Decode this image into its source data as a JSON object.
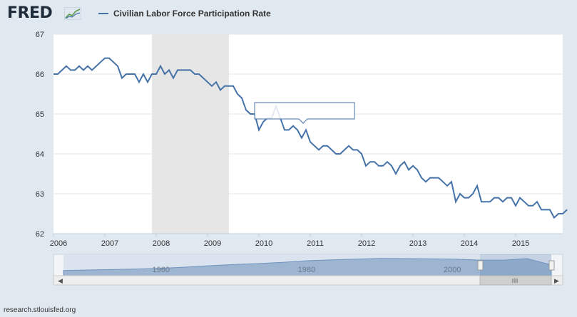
{
  "brand": {
    "logo_text": "FRED",
    "logo_icon": "chart-line-icon",
    "accent": "#4572a7"
  },
  "footer": {
    "source": "research.stlouisfed.org"
  },
  "chart_data": {
    "type": "line",
    "title": "",
    "xlabel": "",
    "ylabel": "",
    "ylim": [
      62,
      67
    ],
    "xlim": [
      "2006-01",
      "2015-12"
    ],
    "y_ticks": [
      62,
      63,
      64,
      65,
      66,
      67
    ],
    "x_ticks": [
      "2006",
      "2007",
      "2008",
      "2009",
      "2010",
      "2011",
      "2012",
      "2013",
      "2014",
      "2015"
    ],
    "grid": true,
    "legend_position": "top-left",
    "recession_shading": {
      "start": "2007-12",
      "end": "2009-06",
      "color": "#e6e6e6"
    },
    "series": [
      {
        "name": "Civilian Labor Force Participation Rate",
        "color": "#4572a7",
        "start": "2006-01",
        "frequency": "monthly",
        "values": [
          66.0,
          66.0,
          66.1,
          66.2,
          66.1,
          66.1,
          66.2,
          66.1,
          66.2,
          66.1,
          66.2,
          66.3,
          66.4,
          66.4,
          66.3,
          66.2,
          65.9,
          66.0,
          66.0,
          66.0,
          65.8,
          66.0,
          65.8,
          66.0,
          66.0,
          66.2,
          66.0,
          66.1,
          65.9,
          66.1,
          66.1,
          66.1,
          66.1,
          66.0,
          66.0,
          65.9,
          65.8,
          65.7,
          65.8,
          65.6,
          65.7,
          65.7,
          65.7,
          65.5,
          65.4,
          65.1,
          65.0,
          65.0,
          64.6,
          64.8,
          64.9,
          64.9,
          65.2,
          64.9,
          64.6,
          64.6,
          64.7,
          64.6,
          64.4,
          64.6,
          64.3,
          64.2,
          64.1,
          64.2,
          64.2,
          64.1,
          64.0,
          64.0,
          64.1,
          64.2,
          64.1,
          64.1,
          64.0,
          63.7,
          63.8,
          63.8,
          63.7,
          63.7,
          63.8,
          63.7,
          63.5,
          63.7,
          63.8,
          63.6,
          63.7,
          63.6,
          63.4,
          63.3,
          63.4,
          63.4,
          63.4,
          63.3,
          63.2,
          63.3,
          62.8,
          63.0,
          62.9,
          62.9,
          63.0,
          63.2,
          62.8,
          62.8,
          62.8,
          62.9,
          62.9,
          62.8,
          62.9,
          62.9,
          62.7,
          62.9,
          62.8,
          62.7,
          62.7,
          62.8,
          62.6,
          62.6,
          62.6,
          62.4,
          62.5,
          62.5,
          62.6
        ]
      }
    ]
  },
  "navigator": {
    "labels": [
      "1960",
      "1980",
      "2000"
    ],
    "history": [
      58.6,
      59.0,
      59.3,
      59.7,
      60.2,
      61.0,
      62.0,
      62.9,
      63.5,
      64.4,
      65.5,
      66.1,
      66.6,
      67.1,
      67.0,
      66.9,
      66.6,
      66.0,
      65.9,
      67.0,
      62.6
    ],
    "history_start": 1948,
    "history_end": 2015,
    "history_ylim": [
      55,
      70
    ]
  }
}
